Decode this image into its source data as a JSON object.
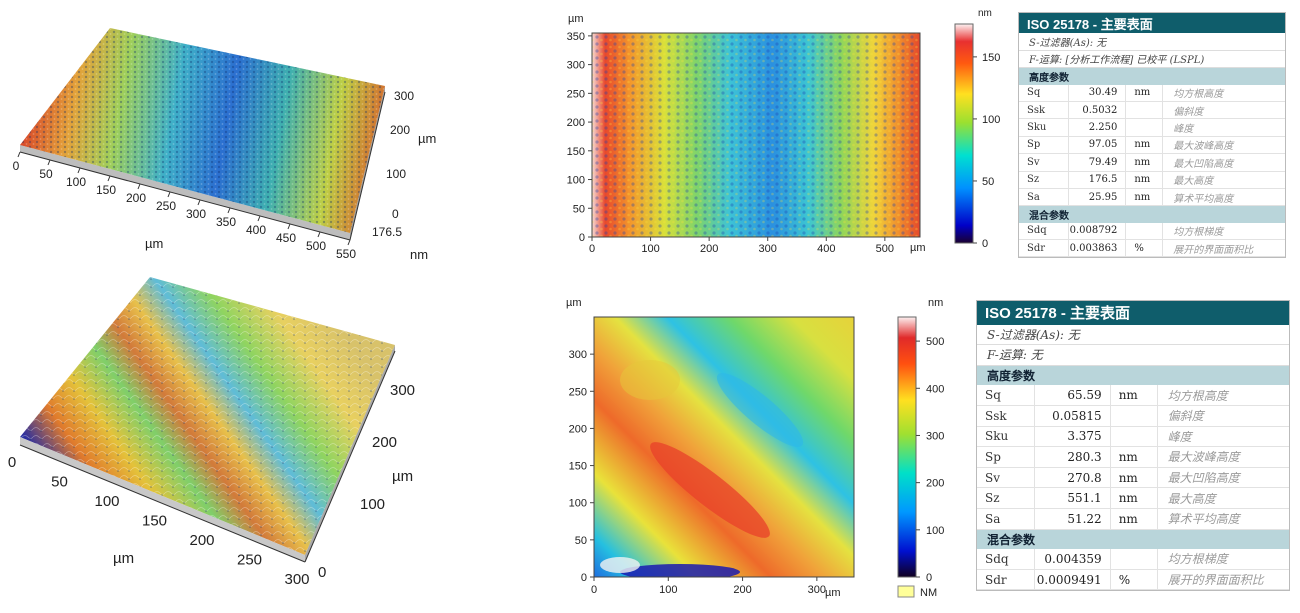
{
  "colors": {
    "header": "#0f5d6b",
    "section": "#b9d5da"
  },
  "chart_data": [
    {
      "id": "surface3d_top",
      "type": "surface-3d",
      "x_ticks": [
        "0",
        "50",
        "100",
        "150",
        "200",
        "250",
        "300",
        "350",
        "400",
        "450",
        "500",
        "550"
      ],
      "x_unit": "µm",
      "y_ticks": [
        "0",
        "100",
        "200",
        "300"
      ],
      "y_unit": "µm",
      "z_ticks": [
        "176.5"
      ],
      "z_unit": "nm"
    },
    {
      "id": "heatmap_top",
      "type": "heatmap",
      "x_ticks": [
        "0",
        "100",
        "200",
        "300",
        "400",
        "500"
      ],
      "x_unit": "µm",
      "y_ticks": [
        "0",
        "50",
        "100",
        "150",
        "200",
        "250",
        "300",
        "350"
      ],
      "y_unit": "µm",
      "xlim": [
        0,
        560
      ],
      "ylim": [
        0,
        355
      ],
      "colorbar": {
        "unit": "nm",
        "ticks": [
          "0",
          "50",
          "100",
          "150"
        ],
        "range": [
          0,
          176.5
        ]
      }
    },
    {
      "id": "surface3d_bottom",
      "type": "surface-3d",
      "x_ticks": [
        "0",
        "50",
        "100",
        "150",
        "200",
        "250",
        "300"
      ],
      "x_unit": "µm",
      "y_ticks": [
        "0",
        "100",
        "200",
        "300"
      ],
      "y_unit": "µm"
    },
    {
      "id": "heatmap_bottom",
      "type": "heatmap",
      "x_ticks": [
        "0",
        "100",
        "200",
        "300"
      ],
      "x_unit": "µm",
      "y_ticks": [
        "0",
        "50",
        "100",
        "150",
        "200",
        "250",
        "300"
      ],
      "y_unit": "µm",
      "xlim": [
        0,
        350
      ],
      "ylim": [
        0,
        350
      ],
      "colorbar": {
        "unit": "nm",
        "ticks": [
          "0",
          "100",
          "200",
          "300",
          "400",
          "500"
        ],
        "range": [
          0,
          551.1
        ]
      },
      "legend": {
        "label": "NM",
        "color": "#ffff99"
      }
    }
  ],
  "tables": [
    {
      "title": "ISO 25178 - 主要表面",
      "filters": [
        "S-过滤器(As):  无",
        "F-运算:  [分析工作流程] 已校平 (LSPL)"
      ],
      "sections": [
        {
          "name": "高度参数",
          "rows": [
            {
              "p": "Sq",
              "v": "30.49",
              "u": "nm",
              "d": "均方根高度"
            },
            {
              "p": "Ssk",
              "v": "0.5032",
              "u": "",
              "d": "偏斜度"
            },
            {
              "p": "Sku",
              "v": "2.250",
              "u": "",
              "d": "峰度"
            },
            {
              "p": "Sp",
              "v": "97.05",
              "u": "nm",
              "d": "最大波峰高度"
            },
            {
              "p": "Sv",
              "v": "79.49",
              "u": "nm",
              "d": "最大凹陷高度"
            },
            {
              "p": "Sz",
              "v": "176.5",
              "u": "nm",
              "d": "最大高度"
            },
            {
              "p": "Sa",
              "v": "25.95",
              "u": "nm",
              "d": "算术平均高度"
            }
          ]
        },
        {
          "name": "混合参数",
          "rows": [
            {
              "p": "Sdq",
              "v": "0.008792",
              "u": "",
              "d": "均方根梯度"
            },
            {
              "p": "Sdr",
              "v": "0.003863",
              "u": "%",
              "d": "展开的界面面积比"
            }
          ]
        }
      ]
    },
    {
      "title": "ISO 25178 - 主要表面",
      "filters": [
        "S-过滤器(As):  无",
        "F-运算:  无"
      ],
      "sections": [
        {
          "name": "高度参数",
          "rows": [
            {
              "p": "Sq",
              "v": "65.59",
              "u": "nm",
              "d": "均方根高度"
            },
            {
              "p": "Ssk",
              "v": "0.05815",
              "u": "",
              "d": "偏斜度"
            },
            {
              "p": "Sku",
              "v": "3.375",
              "u": "",
              "d": "峰度"
            },
            {
              "p": "Sp",
              "v": "280.3",
              "u": "nm",
              "d": "最大波峰高度"
            },
            {
              "p": "Sv",
              "v": "270.8",
              "u": "nm",
              "d": "最大凹陷高度"
            },
            {
              "p": "Sz",
              "v": "551.1",
              "u": "nm",
              "d": "最大高度"
            },
            {
              "p": "Sa",
              "v": "51.22",
              "u": "nm",
              "d": "算术平均高度"
            }
          ]
        },
        {
          "name": "混合参数",
          "rows": [
            {
              "p": "Sdq",
              "v": "0.004359",
              "u": "",
              "d": "均方根梯度"
            },
            {
              "p": "Sdr",
              "v": "0.0009491",
              "u": "%",
              "d": "展开的界面面积比"
            }
          ]
        }
      ]
    }
  ]
}
